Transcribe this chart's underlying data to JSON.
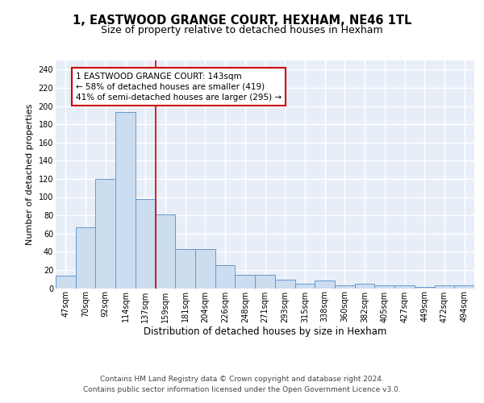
{
  "title": "1, EASTWOOD GRANGE COURT, HEXHAM, NE46 1TL",
  "subtitle": "Size of property relative to detached houses in Hexham",
  "xlabel": "Distribution of detached houses by size in Hexham",
  "ylabel": "Number of detached properties",
  "bar_labels": [
    "47sqm",
    "70sqm",
    "92sqm",
    "114sqm",
    "137sqm",
    "159sqm",
    "181sqm",
    "204sqm",
    "226sqm",
    "248sqm",
    "271sqm",
    "293sqm",
    "315sqm",
    "338sqm",
    "360sqm",
    "382sqm",
    "405sqm",
    "427sqm",
    "449sqm",
    "472sqm",
    "494sqm"
  ],
  "bar_values": [
    14,
    67,
    120,
    193,
    98,
    81,
    43,
    43,
    25,
    15,
    15,
    9,
    5,
    8,
    3,
    5,
    3,
    3,
    1,
    3,
    3
  ],
  "bar_color": "#ccddf0",
  "bar_edge_color": "#6699cc",
  "vline_x": 4.5,
  "vline_color": "#cc0000",
  "annotation_text": "1 EASTWOOD GRANGE COURT: 143sqm\n← 58% of detached houses are smaller (419)\n41% of semi-detached houses are larger (295) →",
  "annotation_box_color": "#ffffff",
  "annotation_box_edge": "#cc0000",
  "yticks": [
    0,
    20,
    40,
    60,
    80,
    100,
    120,
    140,
    160,
    180,
    200,
    220,
    240
  ],
  "ylim": [
    0,
    250
  ],
  "background_color": "#e8eef8",
  "grid_color": "#ffffff",
  "footer_text": "Contains HM Land Registry data © Crown copyright and database right 2024.\nContains public sector information licensed under the Open Government Licence v3.0.",
  "title_fontsize": 10.5,
  "subtitle_fontsize": 9,
  "tick_fontsize": 7,
  "ylabel_fontsize": 8,
  "xlabel_fontsize": 8.5,
  "annotation_fontsize": 7.5,
  "footer_fontsize": 6.5
}
